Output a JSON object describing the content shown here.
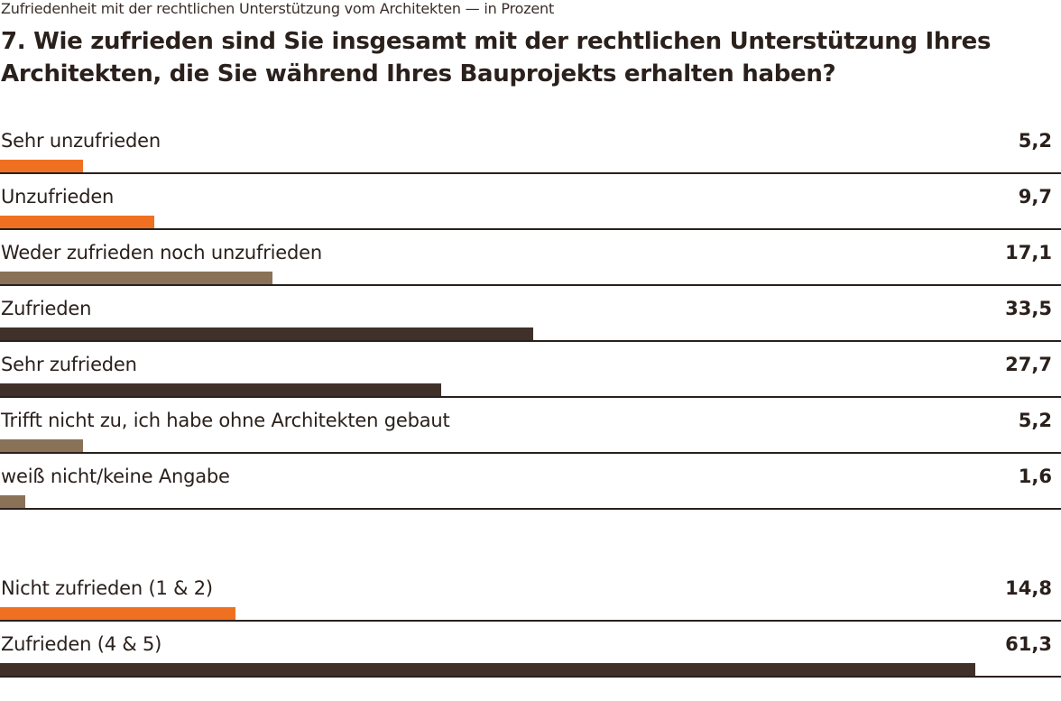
{
  "chart_data": {
    "type": "bar",
    "orientation": "horizontal",
    "subtitle": "Zufriedenheit mit der rechtlichen Unterstützung vom Architekten — in Prozent",
    "title": "7. Wie zufrieden sind Sie insgesamt mit der rechtlichen Unterstützung Ihres Architekten, die Sie während Ihres Bauprojekts erhalten haben?",
    "unit": "Prozent",
    "grid": false,
    "colors": {
      "negative": "#f07022",
      "neutral": "#8a7258",
      "positive": "#3f3029"
    },
    "groups": [
      {
        "categories": [
          "Sehr unzufrieden",
          "Unzufrieden",
          "Weder zufrieden noch unzufrieden",
          "Zufrieden",
          "Sehr zufrieden",
          "Trifft nicht zu, ich habe ohne Architekten gebaut",
          "weiß nicht/keine Angabe"
        ],
        "values": [
          5.2,
          9.7,
          17.1,
          33.5,
          27.7,
          5.2,
          1.6
        ],
        "labels": [
          "5,2",
          "9,7",
          "17,1",
          "33,5",
          "27,7",
          "5,2",
          "1,6"
        ],
        "color_keys": [
          "negative",
          "negative",
          "neutral",
          "positive",
          "positive",
          "neutral",
          "neutral"
        ]
      },
      {
        "categories": [
          "Nicht zufrieden (1 & 2)",
          "Zufrieden (4 & 5)"
        ],
        "values": [
          14.8,
          61.3
        ],
        "labels": [
          "14,8",
          "61,3"
        ],
        "color_keys": [
          "negative",
          "positive"
        ]
      }
    ]
  }
}
